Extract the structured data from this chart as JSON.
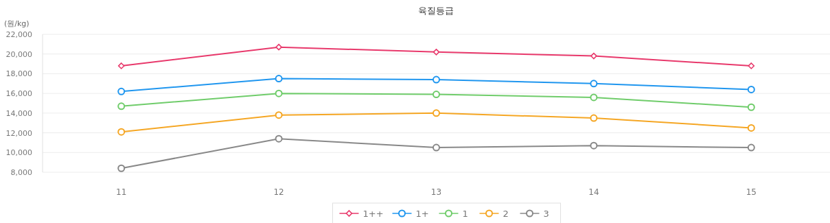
{
  "chart_data": {
    "type": "line",
    "title": "육질등급",
    "ylabel": "(원/kg)",
    "categories": [
      "11",
      "12",
      "13",
      "14",
      "15"
    ],
    "series": [
      {
        "name": "1++",
        "color": "#e8386b",
        "marker": "diamond",
        "values": [
          18800,
          20700,
          20200,
          19800,
          18800
        ]
      },
      {
        "name": "1+",
        "color": "#1f96ef",
        "marker": "circle",
        "values": [
          16200,
          17500,
          17400,
          17000,
          16400
        ]
      },
      {
        "name": "1",
        "color": "#6fcc6a",
        "marker": "circle",
        "values": [
          14700,
          16000,
          15900,
          15600,
          14600
        ]
      },
      {
        "name": "2",
        "color": "#f5a623",
        "marker": "circle",
        "values": [
          12100,
          13800,
          14000,
          13500,
          12500
        ]
      },
      {
        "name": "3",
        "color": "#888888",
        "marker": "circle",
        "values": [
          8400,
          11400,
          10500,
          10700,
          10500
        ]
      }
    ],
    "ylim": [
      8000,
      22000
    ],
    "yticks": [
      {
        "value": 8000,
        "label": "8,000"
      },
      {
        "value": 10000,
        "label": "10,000"
      },
      {
        "value": 12000,
        "label": "12,000"
      },
      {
        "value": 14000,
        "label": "14,000"
      },
      {
        "value": 16000,
        "label": "16,000"
      },
      {
        "value": 18000,
        "label": "18,000"
      },
      {
        "value": 20000,
        "label": "20,000"
      },
      {
        "value": 22000,
        "label": "22,000"
      }
    ],
    "grid": "y",
    "legend": "bottom",
    "line_style": "solid"
  }
}
